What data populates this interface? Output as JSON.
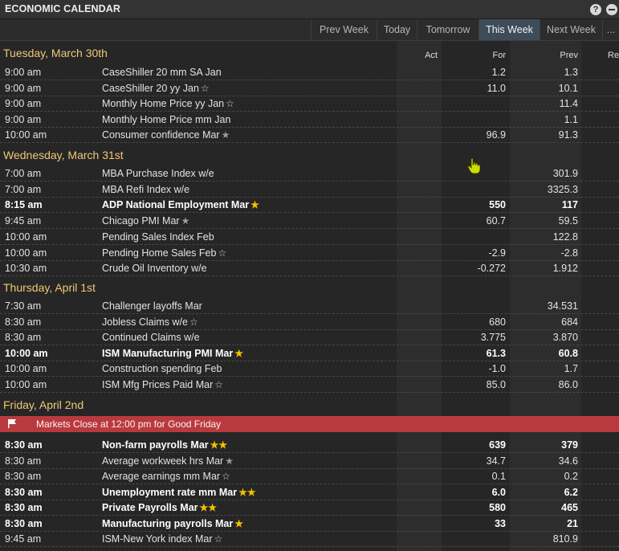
{
  "window": {
    "title": "ECONOMIC CALENDAR",
    "help_icon": "question-icon",
    "minimize_icon": "minimize-icon"
  },
  "tabs": [
    {
      "label": "Prev Week",
      "active": false
    },
    {
      "label": "Today",
      "active": false
    },
    {
      "label": "Tomorrow",
      "active": false
    },
    {
      "label": "This Week",
      "active": true
    },
    {
      "label": "Next Week",
      "active": false
    },
    {
      "label": "...",
      "active": false
    }
  ],
  "columns": {
    "act": "Act",
    "for": "For",
    "prev": "Prev",
    "rev": "Re"
  },
  "banner": {
    "text": "Markets Close at 12:00 pm for Good Friday",
    "icon": "flag-icon"
  },
  "colors": {
    "day_heading": "#f1c875",
    "banner": "#b93a3e",
    "active_tab": "#3e4c5a",
    "star_gold": "#f2c200"
  },
  "days": [
    {
      "label": "Tuesday, March 30th",
      "events": [
        {
          "time": "9:00 am",
          "name": "CaseShiller 20 mm SA Jan",
          "star": "",
          "act": "",
          "for": "1.2",
          "prev": "1.3",
          "bold": false
        },
        {
          "time": "9:00 am",
          "name": "CaseShiller 20 yy Jan",
          "star": "☆",
          "act": "",
          "for": "11.0",
          "prev": "10.1",
          "bold": false
        },
        {
          "time": "9:00 am",
          "name": "Monthly Home Price yy Jan",
          "star": "☆",
          "act": "",
          "for": "",
          "prev": "11.4",
          "bold": false
        },
        {
          "time": "9:00 am",
          "name": "Monthly Home Price mm Jan",
          "star": "",
          "act": "",
          "for": "",
          "prev": "1.1",
          "bold": false
        },
        {
          "time": "10:00 am",
          "name": "Consumer confidence Mar",
          "star": "★",
          "star_style": "gray",
          "act": "",
          "for": "96.9",
          "prev": "91.3",
          "bold": false
        }
      ]
    },
    {
      "label": "Wednesday, March 31st",
      "events": [
        {
          "time": "7:00 am",
          "name": "MBA Purchase Index w/e",
          "star": "",
          "act": "",
          "for": "",
          "prev": "301.9",
          "bold": false
        },
        {
          "time": "7:00 am",
          "name": "MBA Refi Index w/e",
          "star": "",
          "act": "",
          "for": "",
          "prev": "3325.3",
          "bold": false
        },
        {
          "time": "8:15 am",
          "name": "ADP National Employment Mar",
          "star": "★",
          "star_style": "gold",
          "act": "",
          "for": "550",
          "prev": "117",
          "bold": true
        },
        {
          "time": "9:45 am",
          "name": "Chicago PMI Mar",
          "star": "★",
          "star_style": "gray",
          "act": "",
          "for": "60.7",
          "prev": "59.5",
          "bold": false
        },
        {
          "time": "10:00 am",
          "name": "Pending Sales Index Feb",
          "star": "",
          "act": "",
          "for": "",
          "prev": "122.8",
          "bold": false
        },
        {
          "time": "10:00 am",
          "name": "Pending Home Sales Feb",
          "star": "☆",
          "act": "",
          "for": "-2.9",
          "prev": "-2.8",
          "bold": false
        },
        {
          "time": "10:30 am",
          "name": "Crude Oil Inventory w/e",
          "star": "",
          "act": "",
          "for": "-0.272",
          "prev": "1.912",
          "bold": false
        }
      ]
    },
    {
      "label": "Thursday, April 1st",
      "events": [
        {
          "time": "7:30 am",
          "name": "Challenger layoffs Mar",
          "star": "",
          "act": "",
          "for": "",
          "prev": "34.531",
          "bold": false
        },
        {
          "time": "8:30 am",
          "name": "Jobless Claims w/e",
          "star": "☆",
          "act": "",
          "for": "680",
          "prev": "684",
          "bold": false
        },
        {
          "time": "8:30 am",
          "name": "Continued Claims w/e",
          "star": "",
          "act": "",
          "for": "3.775",
          "prev": "3.870",
          "bold": false
        },
        {
          "time": "10:00 am",
          "name": "ISM Manufacturing PMI Mar",
          "star": "★",
          "star_style": "gold",
          "act": "",
          "for": "61.3",
          "prev": "60.8",
          "bold": true
        },
        {
          "time": "10:00 am",
          "name": "Construction spending Feb",
          "star": "",
          "act": "",
          "for": "-1.0",
          "prev": "1.7",
          "bold": false
        },
        {
          "time": "10:00 am",
          "name": "ISM Mfg Prices Paid Mar",
          "star": "☆",
          "act": "",
          "for": "85.0",
          "prev": "86.0",
          "bold": false
        }
      ]
    },
    {
      "label": "Friday, April 2nd",
      "events": [
        {
          "time": "8:30 am",
          "name": "Non-farm payrolls Mar",
          "star": "★★",
          "star_style": "gold",
          "act": "",
          "for": "639",
          "prev": "379",
          "bold": true
        },
        {
          "time": "8:30 am",
          "name": "Average workweek hrs Mar",
          "star": "★",
          "star_style": "gray",
          "act": "",
          "for": "34.7",
          "prev": "34.6",
          "bold": false
        },
        {
          "time": "8:30 am",
          "name": "Average earnings mm Mar",
          "star": "☆",
          "act": "",
          "for": "0.1",
          "prev": "0.2",
          "bold": false
        },
        {
          "time": "8:30 am",
          "name": "Unemployment rate mm Mar",
          "star": "★★",
          "star_style": "gold",
          "act": "",
          "for": "6.0",
          "prev": "6.2",
          "bold": true
        },
        {
          "time": "8:30 am",
          "name": "Private Payrolls Mar",
          "star": "★★",
          "star_style": "gold",
          "act": "",
          "for": "580",
          "prev": "465",
          "bold": true
        },
        {
          "time": "8:30 am",
          "name": "Manufacturing payrolls Mar",
          "star": "★",
          "star_style": "gold",
          "act": "",
          "for": "33",
          "prev": "21",
          "bold": true
        },
        {
          "time": "9:45 am",
          "name": "ISM-New York index Mar",
          "star": "☆",
          "act": "",
          "for": "",
          "prev": "810.9",
          "bold": false
        }
      ]
    }
  ]
}
